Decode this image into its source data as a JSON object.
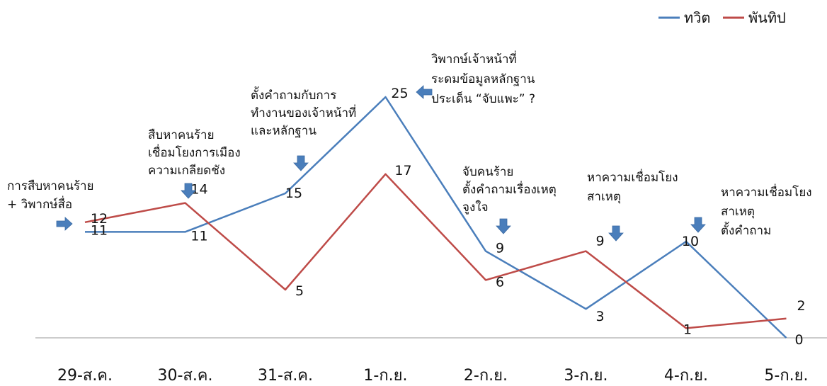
{
  "chart_data": {
    "type": "line",
    "categories": [
      "29-ส.ค.",
      "30-ส.ค.",
      "31-ส.ค.",
      "1-ก.ย.",
      "2-ก.ย.",
      "3-ก.ย.",
      "4-ก.ย.",
      "5-ก.ย."
    ],
    "series": [
      {
        "name": "ทวิต",
        "color": "#4a7ebb",
        "values": [
          11,
          11,
          15,
          25,
          9,
          3,
          10,
          0
        ]
      },
      {
        "name": "พันทิป",
        "color": "#be4b48",
        "values": [
          12,
          14,
          5,
          17,
          6,
          9,
          1,
          2
        ]
      }
    ],
    "ylim": [
      0,
      26
    ],
    "grid": false,
    "legend": "top-right",
    "annotations": [
      {
        "text": "การสืบหาคนร้าย\n+ วิพากษ์สื่อ"
      },
      {
        "text": "สืบหาคนร้าย\nเชื่อมโยงการเมือง\nความเกลียดชัง"
      },
      {
        "text": "ตั้งคำถามกับการ\nทำงานของเจ้าหน้าที่\nและหลักฐาน"
      },
      {
        "text": "วิพากษ์เจ้าหน้าที่\nระดมข้อมูลหลักฐาน\nประเด็น “จับแพะ” ?"
      },
      {
        "text": "จับคนร้าย\nตั้งคำถามเรื่องเหตุ\nจูงใจ"
      },
      {
        "text": "หาความเชื่อมโยง\nสาเหตุ"
      },
      {
        "text": "หาความเชื่อมโยง\nสาเหตุ\nตั้งคำถาม"
      }
    ]
  }
}
